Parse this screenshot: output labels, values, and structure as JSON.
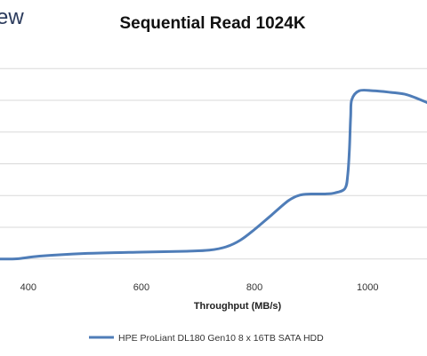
{
  "logo": {
    "text": "ew"
  },
  "chart_data": {
    "type": "line",
    "title": "Sequential Read 1024K",
    "xlabel": "Throughput (MB/s)",
    "ylabel": "",
    "xlim": [
      350,
      1105
    ],
    "x_ticks": [
      400,
      600,
      800,
      1000
    ],
    "ylim": [
      0,
      1
    ],
    "grid": true,
    "legend_position": "bottom",
    "series": [
      {
        "name": "HPE ProLiant DL180 Gen10 8 x 16TB SATA HDD",
        "color": "#4f7db8",
        "points": [
          [
            350,
            0.057
          ],
          [
            380,
            0.058
          ],
          [
            420,
            0.07
          ],
          [
            500,
            0.082
          ],
          [
            600,
            0.088
          ],
          [
            680,
            0.092
          ],
          [
            720,
            0.097
          ],
          [
            750,
            0.112
          ],
          [
            775,
            0.142
          ],
          [
            800,
            0.19
          ],
          [
            830,
            0.255
          ],
          [
            860,
            0.32
          ],
          [
            880,
            0.345
          ],
          [
            900,
            0.35
          ],
          [
            925,
            0.35
          ],
          [
            942,
            0.355
          ],
          [
            960,
            0.375
          ],
          [
            965,
            0.44
          ],
          [
            968,
            0.56
          ],
          [
            970,
            0.7
          ],
          [
            972,
            0.775
          ],
          [
            985,
            0.815
          ],
          [
            1010,
            0.815
          ],
          [
            1040,
            0.808
          ],
          [
            1070,
            0.797
          ],
          [
            1105,
            0.762
          ]
        ]
      }
    ]
  }
}
